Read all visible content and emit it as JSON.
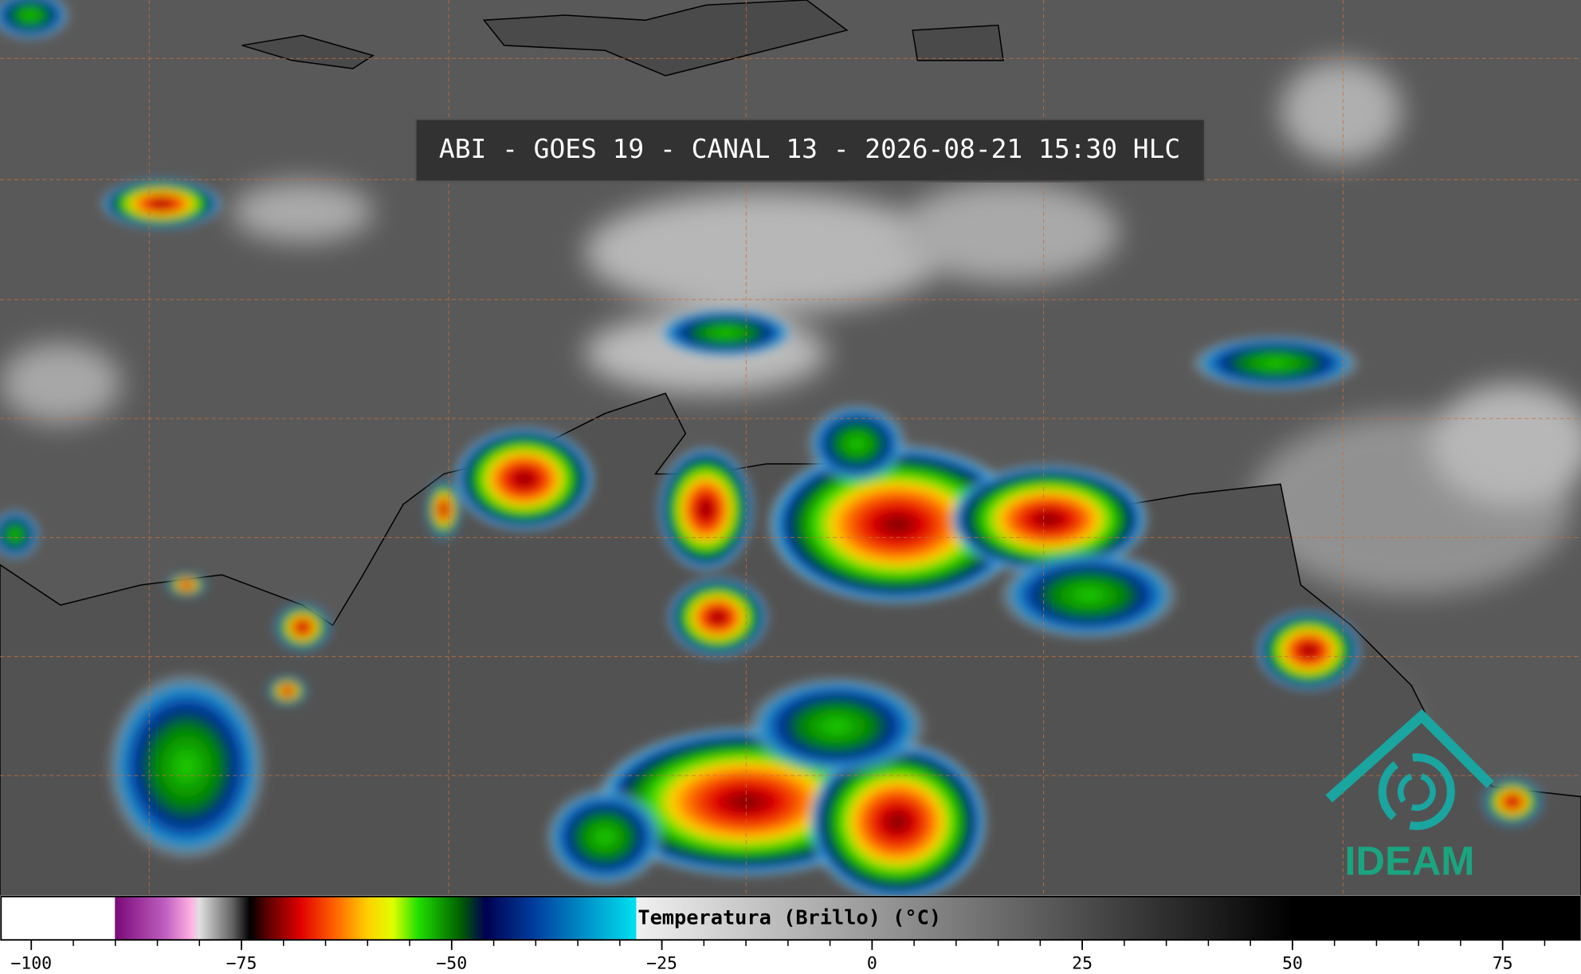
{
  "header": {
    "title": "ABI - GOES 19 - CANAL 13 - 2026-08-21 15:30 HLC"
  },
  "colorbar": {
    "label": "Temperatura (Brillo) (°C)",
    "xlim": [
      -103.6,
      84.2
    ],
    "xticks": [
      {
        "value": -100,
        "label": "−100"
      },
      {
        "value": -75,
        "label": "−75"
      },
      {
        "value": -50,
        "label": "−50"
      },
      {
        "value": -25,
        "label": "−25"
      },
      0,
      25,
      50,
      75
    ],
    "minor_xticks": [
      -100,
      -95,
      -90,
      -85,
      -80,
      -75,
      -70,
      -65,
      -60,
      -55,
      -50,
      -45,
      -40,
      -35,
      -30,
      -25,
      -20,
      -15,
      -10,
      -5,
      0,
      5,
      10,
      15,
      20,
      25,
      30,
      35,
      40,
      45,
      50,
      55,
      60,
      65,
      70,
      75,
      80
    ],
    "colorscale": [
      {
        "value": -103.6,
        "color": "#ffffff"
      },
      {
        "value": -90.1,
        "color": "#ffffff"
      },
      {
        "value": -90,
        "color": "#7a0a7a"
      },
      {
        "value": -84,
        "color": "#c060c0"
      },
      {
        "value": -81,
        "color": "#ffb0e0"
      },
      {
        "value": -80,
        "color": "#e0e0e0"
      },
      {
        "value": -76,
        "color": "#606060"
      },
      {
        "value": -74,
        "color": "#000000"
      },
      {
        "value": -72,
        "color": "#5a0000"
      },
      {
        "value": -68,
        "color": "#e00000"
      },
      {
        "value": -64,
        "color": "#ff6000"
      },
      {
        "value": -60,
        "color": "#ffd000"
      },
      {
        "value": -57,
        "color": "#e0ff00"
      },
      {
        "value": -54,
        "color": "#20e000"
      },
      {
        "value": -49,
        "color": "#006000"
      },
      {
        "value": -46,
        "color": "#000050"
      },
      {
        "value": -40,
        "color": "#0040a0"
      },
      {
        "value": -33,
        "color": "#00a0d0"
      },
      {
        "value": -28.1,
        "color": "#00e0f0"
      },
      {
        "value": -28,
        "color": "#f0f0f0"
      },
      {
        "value": 50,
        "color": "#000000"
      },
      {
        "value": 84.2,
        "color": "#000000"
      }
    ]
  },
  "logo": {
    "text": "IDEAM"
  }
}
